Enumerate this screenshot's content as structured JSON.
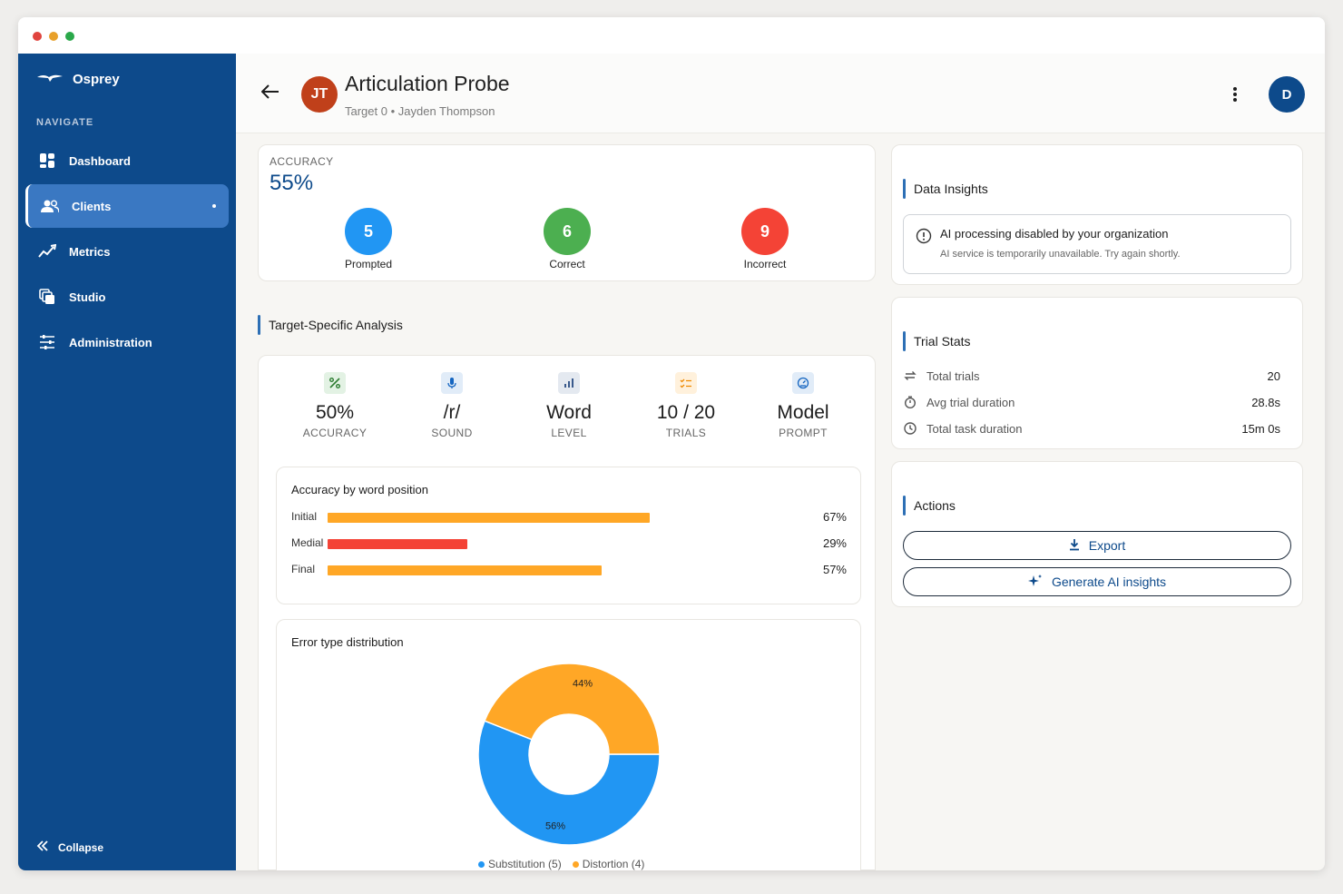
{
  "app": {
    "name": "Osprey"
  },
  "sidebar": {
    "section_label": "NAVIGATE",
    "items": [
      {
        "label": "Dashboard",
        "icon": "dashboard-icon"
      },
      {
        "label": "Clients",
        "icon": "clients-icon",
        "active": true
      },
      {
        "label": "Metrics",
        "icon": "metrics-icon"
      },
      {
        "label": "Studio",
        "icon": "studio-icon"
      },
      {
        "label": "Administration",
        "icon": "administration-icon"
      }
    ],
    "collapse_label": "Collapse"
  },
  "header": {
    "avatar_initials": "JT",
    "title": "Articulation Probe",
    "subtitle": "Target 0 • Jayden Thompson",
    "user_initial": "D"
  },
  "accuracy_card": {
    "label": "ACCURACY",
    "value": "55%",
    "counts": [
      {
        "value": "5",
        "label": "Prompted",
        "color": "#2196f3"
      },
      {
        "value": "6",
        "label": "Correct",
        "color": "#4caf50"
      },
      {
        "value": "9",
        "label": "Incorrect",
        "color": "#f44336"
      }
    ]
  },
  "analysis": {
    "title": "Target-Specific Analysis",
    "metrics": [
      {
        "value": "50%",
        "label": "ACCURACY",
        "icon": "percent-icon"
      },
      {
        "value": "/r/",
        "label": "SOUND",
        "icon": "microphone-icon"
      },
      {
        "value": "Word",
        "label": "LEVEL",
        "icon": "bar-chart-icon"
      },
      {
        "value": "10 / 20",
        "label": "TRIALS",
        "icon": "checklist-icon"
      },
      {
        "value": "Model",
        "label": "PROMPT",
        "icon": "gauge-icon"
      }
    ],
    "word_position": {
      "title": "Accuracy by word position",
      "rows": [
        {
          "label": "Initial",
          "value": 67,
          "display": "67%",
          "color": "#ffa726"
        },
        {
          "label": "Medial",
          "value": 29,
          "display": "29%",
          "color": "#f44336"
        },
        {
          "label": "Final",
          "value": 57,
          "display": "57%",
          "color": "#ffa726"
        }
      ]
    },
    "error_distribution": {
      "title": "Error type distribution"
    }
  },
  "chart_data": {
    "type": "pie",
    "title": "Error type distribution",
    "categories": [
      "Substitution (5)",
      "Distortion (4)"
    ],
    "values": [
      56,
      44
    ],
    "value_labels": [
      "56%",
      "44%"
    ],
    "colors": [
      "#2196f3",
      "#ffa726"
    ],
    "donut": true,
    "legend": "bottom"
  },
  "insights": {
    "title": "Data Insights",
    "alert_title": "AI processing disabled by your organization",
    "alert_text": "AI service is temporarily unavailable. Try again shortly."
  },
  "trial_stats": {
    "title": "Trial Stats",
    "rows": [
      {
        "label": "Total trials",
        "value": "20",
        "icon": "repeat-icon"
      },
      {
        "label": "Avg trial duration",
        "value": "28.8s",
        "icon": "stopwatch-icon"
      },
      {
        "label": "Total task duration",
        "value": "15m 0s",
        "icon": "clock-icon"
      }
    ]
  },
  "actions": {
    "title": "Actions",
    "export_label": "Export",
    "generate_label": "Generate AI insights"
  }
}
